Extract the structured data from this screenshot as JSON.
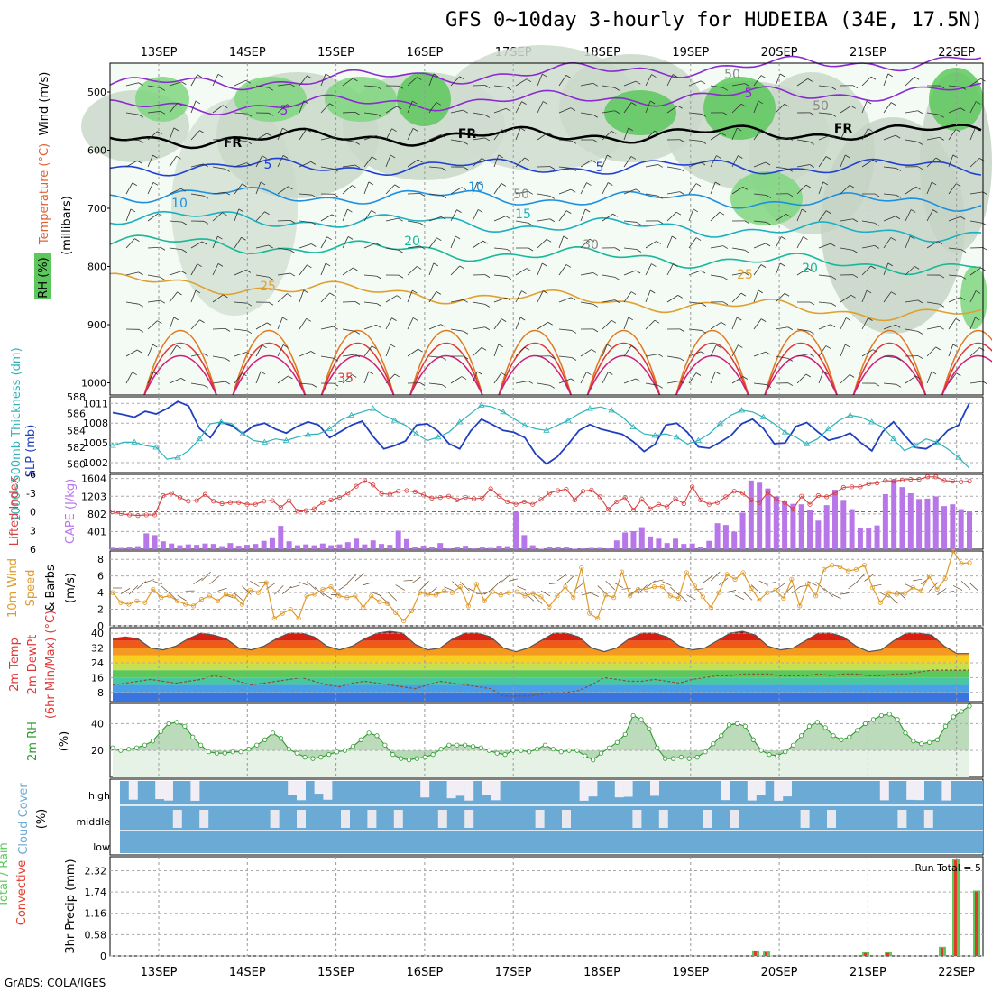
{
  "title": "GFS 0~10day 3-hourly for HUDEIBA (34E, 17.5N)",
  "footer": "GrADS: COLA/IGES",
  "dates": [
    "13SEP",
    "14SEP",
    "15SEP",
    "16SEP",
    "17SEP",
    "18SEP",
    "19SEP",
    "20SEP",
    "21SEP",
    "22SEP"
  ],
  "colors": {
    "rh_green": "#3cb83c",
    "slp": "#1f3fbf",
    "thickness": "#2fb3b8",
    "lifted": "#d84040",
    "cape": "#b877e8",
    "wind_line": "#e09a2a",
    "rh2m": "#2f9a2f",
    "cloud": "#6aaad4",
    "precip_total": "#5cc85c",
    "precip_conv": "#e23a2a"
  },
  "chart_data": [
    {
      "type": "heatmap",
      "name_panel": "cross-section",
      "ylabel": "(millibars)",
      "left_labels": {
        "rh": "RH (%)",
        "temp": "Temperature (°C)",
        "wind": "Wind (m/s)"
      },
      "yticks": [
        "500",
        "600",
        "700",
        "800",
        "900",
        "1000"
      ],
      "ylim": [
        1000,
        450
      ],
      "contour_labels": [
        "5",
        "5",
        "FR",
        "FR",
        "FR",
        "5",
        "5",
        "10",
        "10",
        "15",
        "20",
        "20",
        "25",
        "25",
        "35",
        "50",
        "50",
        "50",
        "30"
      ],
      "temperature_levels_c": [
        35,
        30,
        25,
        20,
        15,
        10,
        5,
        0,
        -5
      ],
      "freezing_level_mb": 580
    },
    {
      "type": "line",
      "name_panel": "slp-thickness",
      "left_labels": {
        "thickness": "1000~500mb Thickness (dm)",
        "slp": "SLP (mb)"
      },
      "left_ticks": [
        "588",
        "586",
        "584",
        "582",
        "580"
      ],
      "right_ticks": [
        "1011",
        "1008",
        "1005",
        "1002"
      ],
      "left_range": [
        579,
        588
      ],
      "right_range": [
        1000.5,
        1012
      ],
      "series": [
        {
          "label": "SLP",
          "axis": "right",
          "values": [
            1009.6,
            1009.3,
            1008.9,
            1009.8,
            1009.4,
            1010.2,
            1011.3,
            1010.6,
            1007.2,
            1005.8,
            1008.2,
            1007.6,
            1006.4,
            1007.6,
            1008.0,
            1007.1,
            1006.5,
            1007.5,
            1008.2,
            1007.7,
            1005.8,
            1006.7,
            1007.7,
            1008.3,
            1006.0,
            1004.1,
            1004.6,
            1005.3,
            1007.7,
            1007.9,
            1006.8,
            1004.9,
            1004.1,
            1006.8,
            1008.6,
            1007.8,
            1006.9,
            1006.6,
            1005.8,
            1003.3,
            1001.8,
            1002.9,
            1004.8,
            1006.9,
            1007.8,
            1007.1,
            1006.7,
            1006.3,
            1005.2,
            1003.7,
            1004.8,
            1007.7,
            1008.0,
            1006.6,
            1004.4,
            1004.2,
            1005.1,
            1006.1,
            1007.9,
            1008.6,
            1007.2,
            1004.9,
            1005.0,
            1007.5,
            1008.1,
            1006.7,
            1005.4,
            1005.8,
            1006.5,
            1005.0,
            1003.8,
            1006.7,
            1008.2,
            1006.2,
            1004.3,
            1004.1,
            1005.1,
            1006.9,
            1007.7,
            1011.1
          ]
        },
        {
          "label": "Thickness",
          "axis": "left",
          "values": [
            582.2,
            582.6,
            582.6,
            582.2,
            582.0,
            580.6,
            580.8,
            581.6,
            583.0,
            584.8,
            585.0,
            584.8,
            583.6,
            582.8,
            582.6,
            583.0,
            582.8,
            583.2,
            583.5,
            583.6,
            584.2,
            585.2,
            585.8,
            586.2,
            586.6,
            585.8,
            585.2,
            584.6,
            583.6,
            582.8,
            583.2,
            583.8,
            585.0,
            586.0,
            587.0,
            586.8,
            586.2,
            585.4,
            584.6,
            584.2,
            584.0,
            584.6,
            585.2,
            586.0,
            586.6,
            586.8,
            586.4,
            585.6,
            584.4,
            583.6,
            583.4,
            583.6,
            583.2,
            582.4,
            582.8,
            583.6,
            584.8,
            585.8,
            586.4,
            586.2,
            585.6,
            584.8,
            583.8,
            583.2,
            582.4,
            583.0,
            584.2,
            585.2,
            585.8,
            585.6,
            585.0,
            584.4,
            583.0,
            581.6,
            582.2,
            583.0,
            582.6,
            581.8,
            580.8,
            579.5
          ]
        }
      ]
    },
    {
      "type": "bar",
      "name_panel": "cape-lifted",
      "left_labels": {
        "lifted": "Lifted Index",
        "cape": "CAPE (J/kg)"
      },
      "left_ticks": [
        "-6",
        "-3",
        "0",
        "3",
        "6"
      ],
      "right_ticks": [
        "1604",
        "1203",
        "802",
        "401"
      ],
      "series": [
        {
          "label": "CAPE",
          "axis": "right",
          "values": [
            35,
            30,
            40,
            70,
            360,
            320,
            180,
            130,
            90,
            110,
            100,
            130,
            120,
            70,
            140,
            80,
            100,
            120,
            190,
            250,
            530,
            180,
            90,
            110,
            90,
            130,
            90,
            110,
            160,
            240,
            110,
            200,
            120,
            100,
            420,
            230,
            60,
            80,
            60,
            140,
            20,
            60,
            80,
            20,
            40,
            30,
            80,
            70,
            850,
            320,
            90,
            10,
            60,
            60,
            40,
            10,
            20,
            30,
            30,
            20,
            200,
            380,
            410,
            500,
            290,
            240,
            140,
            240,
            120,
            130,
            50,
            190,
            590,
            550,
            400,
            830,
            1560,
            1510,
            1380,
            1200,
            1100,
            1030,
            1020,
            900,
            650,
            1000,
            1350,
            1120,
            910,
            480,
            470,
            540,
            1250,
            1590,
            1410,
            1270,
            1140,
            1150,
            1200,
            980,
            1020,
            910,
            860
          ]
        },
        {
          "label": "Lifted Index",
          "axis": "left",
          "values": [
            0,
            0.3,
            0.5,
            0.6,
            0.5,
            0.5,
            -2.6,
            -3.0,
            -2.3,
            -1.7,
            -1.8,
            -2.8,
            -1.7,
            -1.3,
            -1.5,
            -1.5,
            -1.2,
            -1.2,
            -1.7,
            -1.8,
            -0.7,
            -1.8,
            -0.1,
            -0.2,
            -0.5,
            -1.5,
            -1.9,
            -2.3,
            -3.0,
            -4.1,
            -5.0,
            -4.3,
            -2.9,
            -2.8,
            -3.3,
            -3.4,
            -3.2,
            -2.7,
            -2.2,
            -2.3,
            -2.5,
            -1.9,
            -2.3,
            -2.1,
            -2.2,
            -3.7,
            -2.5,
            -1.6,
            -1.2,
            -1.6,
            -1.2,
            -2.0,
            -3.0,
            -3.4,
            -3.6,
            -1.9,
            -3.3,
            -3.5,
            -2.4,
            -0.4,
            -1.6,
            -2.3,
            -0.3,
            -2.0,
            -0.5,
            -1.2,
            -0.8,
            -2.1,
            -1.3,
            -4.0,
            -1.9,
            -1.2,
            -1.5,
            -2.4,
            -3.3,
            -3.0,
            -1.9,
            -1.5,
            -3.1,
            -2.0,
            -1.5,
            -0.4,
            -2.5,
            -1.2,
            -2.6,
            -2.4,
            -3.0,
            -3.9,
            -4.0,
            -4.0,
            -4.5,
            -4.6,
            -5.0,
            -4.9,
            -5.1,
            -5.2,
            -5.2,
            -5.6,
            -5.6,
            -5.0,
            -4.9,
            -4.8,
            -4.9
          ]
        }
      ]
    },
    {
      "type": "line",
      "name_panel": "wind10m",
      "left_labels": {
        "a": "10m Wind",
        "b": "Speed",
        "c": "& Barbs",
        "unit": "(m/s)"
      },
      "yticks": [
        "0",
        "2",
        "4",
        "6",
        "8"
      ],
      "ylim": [
        0,
        9
      ],
      "series": [
        {
          "label": "10m Wind Speed",
          "values": [
            4.0,
            2.8,
            2.6,
            3.0,
            2.8,
            4.4,
            3.4,
            3.6,
            3.0,
            2.6,
            2.4,
            3.2,
            3.6,
            3.0,
            3.8,
            3.6,
            2.6,
            4.3,
            4.0,
            5.2,
            0.9,
            1.5,
            2.0,
            0.9,
            3.6,
            3.8,
            4.4,
            4.7,
            3.6,
            3.4,
            3.6,
            2.2,
            3.6,
            2.9,
            2.7,
            1.6,
            0.6,
            1.8,
            4.0,
            3.8,
            3.7,
            4.2,
            4.0,
            4.7,
            2.4,
            5.0,
            3.0,
            4.1,
            3.7,
            4.0,
            4.1,
            3.6,
            3.9,
            3.5,
            2.3,
            3.6,
            4.7,
            3.4,
            7.0,
            1.5,
            0.9,
            3.7,
            3.4,
            6.5,
            3.6,
            4.4,
            4.4,
            4.7,
            4.7,
            3.6,
            3.3,
            6.4,
            4.8,
            3.5,
            2.2,
            4.0,
            6.2,
            5.6,
            6.4,
            4.5,
            3.1,
            4.0,
            4.3,
            3.3,
            5.6,
            2.4,
            5.0,
            3.6,
            6.8,
            7.3,
            7.1,
            6.6,
            6.8,
            7.3,
            4.6,
            2.8,
            4.0,
            3.8,
            3.9,
            4.6,
            4.2,
            6.0,
            4.4,
            5.7,
            9.0,
            7.5,
            7.6
          ]
        }
      ]
    },
    {
      "type": "line",
      "name_panel": "temp2m",
      "left_labels": {
        "a": "2m Temp",
        "b": "2m DewPt",
        "c": "(6hr Min/Max) (°C)"
      },
      "yticks": [
        "8",
        "16",
        "24",
        "32",
        "40"
      ],
      "ylim": [
        3,
        43
      ],
      "series": [
        {
          "label": "2m Temp",
          "values": [
            37,
            38,
            37,
            32,
            31,
            33,
            37,
            40,
            39,
            37,
            32,
            31,
            33,
            37,
            40,
            40,
            38,
            33,
            31,
            33,
            37,
            40,
            41,
            40,
            34,
            31,
            32,
            37,
            40,
            40,
            38,
            32,
            30,
            32,
            36,
            40,
            40,
            38,
            32,
            30,
            32,
            37,
            40,
            40,
            38,
            33,
            31,
            32,
            36,
            40,
            41,
            39,
            33,
            31,
            32,
            36,
            40,
            40,
            38,
            33,
            30,
            31,
            36,
            40,
            40,
            39,
            33,
            29,
            29
          ]
        },
        {
          "label": "2m DewPt",
          "values": [
            12,
            13,
            14,
            15,
            14,
            13,
            14,
            15,
            17,
            16,
            14,
            12,
            13,
            14,
            15,
            16,
            14,
            12,
            11,
            13,
            14,
            13,
            12,
            11,
            10,
            12,
            14,
            13,
            12,
            11,
            10,
            6,
            6,
            6,
            7,
            8,
            8,
            9,
            12,
            16,
            15,
            14,
            14,
            15,
            14,
            13,
            15,
            16,
            17,
            17,
            18,
            18,
            18,
            17,
            17,
            17,
            18,
            17,
            18,
            18,
            17,
            17,
            18,
            18,
            19,
            20,
            20,
            20,
            20
          ]
        }
      ]
    },
    {
      "type": "area",
      "name_panel": "rh2m",
      "left_labels": {
        "a": "2m RH",
        "unit": "(%)"
      },
      "yticks": [
        "20",
        "40"
      ],
      "ylim": [
        0,
        55
      ],
      "series": [
        {
          "label": "2m RH",
          "values": [
            22,
            20,
            21,
            22,
            24,
            27,
            34,
            40,
            41,
            38,
            30,
            24,
            19,
            18,
            18,
            19,
            19,
            21,
            24,
            28,
            33,
            29,
            21,
            18,
            15,
            14,
            15,
            17,
            19,
            20,
            23,
            28,
            33,
            31,
            24,
            17,
            14,
            13,
            14,
            15,
            17,
            21,
            24,
            24,
            24,
            23,
            22,
            20,
            18,
            17,
            20,
            20,
            19,
            21,
            24,
            21,
            19,
            20,
            20,
            16,
            13,
            18,
            22,
            26,
            32,
            46,
            43,
            36,
            22,
            14,
            14,
            15,
            14,
            15,
            19,
            25,
            31,
            39,
            40,
            38,
            28,
            20,
            17,
            16,
            19,
            24,
            31,
            38,
            41,
            37,
            31,
            28,
            30,
            35,
            40,
            43,
            46,
            47,
            43,
            33,
            27,
            25,
            26,
            28,
            38,
            45,
            49,
            53
          ]
        }
      ]
    },
    {
      "type": "heatmap",
      "name_panel": "cloud",
      "left_labels": {
        "a": "Cloud Cover",
        "unit": "(%)"
      },
      "rows": [
        "high",
        "middle",
        "low"
      ]
    },
    {
      "type": "bar",
      "name_panel": "precip",
      "left_labels": {
        "a": "Total / Rain",
        "b": "Convective",
        "unit": "3hr Precip (mm)"
      },
      "yticks": [
        "0",
        "0.58",
        "1.16",
        "1.74",
        "2.32"
      ],
      "ylim": [
        0,
        2.7
      ],
      "run_total": "Run Total = 5",
      "series": [
        {
          "label": "Total / Rain",
          "values": [
            0.15,
            0.12,
            0.1,
            0.1,
            0.25,
            2.65,
            1.78
          ]
        },
        {
          "label": "Convective",
          "values": [
            0.13,
            0.1,
            0.08,
            0.08,
            0.22,
            2.6,
            1.75
          ]
        }
      ]
    }
  ]
}
